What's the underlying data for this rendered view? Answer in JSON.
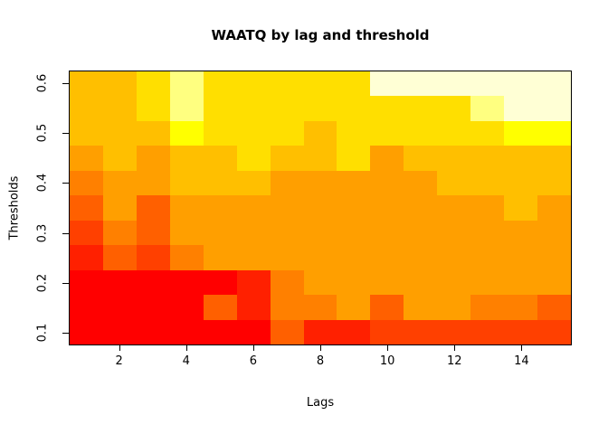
{
  "title": "WAATQ by lag and threshold",
  "chart_data": {
    "type": "heatmap",
    "title": "WAATQ by lag and threshold",
    "xlabel": "Lags",
    "ylabel": "Thresholds",
    "x_values": [
      1,
      2,
      3,
      4,
      5,
      6,
      7,
      8,
      9,
      10,
      11,
      12,
      13,
      14,
      15
    ],
    "y_values": [
      0.1,
      0.15,
      0.2,
      0.25,
      0.3,
      0.35,
      0.4,
      0.45,
      0.5,
      0.55,
      0.6
    ],
    "x_ticks": [
      2,
      4,
      6,
      8,
      10,
      12,
      14
    ],
    "y_ticks": [
      "0.1",
      "0.2",
      "0.3",
      "0.4",
      "0.5",
      "0.6"
    ],
    "x_range": [
      0.5,
      15.5
    ],
    "y_range": [
      0.075,
      0.625
    ],
    "grid_lines": "off",
    "legend": "none",
    "palette_name": "heat-colors-12",
    "palette": [
      "#FF0000",
      "#FF2000",
      "#FF4000",
      "#FF6000",
      "#FF8000",
      "#FF9F00",
      "#FFBF00",
      "#FFDF00",
      "#FFFF00",
      "#FFFF2A",
      "#FFFF80",
      "#FFFFD5"
    ],
    "value_encoding": "each cell stores a 1-based color-bucket index into palette (low index = red/low WAATQ, high index = pale yellow/high WAATQ), as read from the image",
    "rows": [
      {
        "threshold": 0.1,
        "levels": [
          1,
          1,
          1,
          1,
          1,
          1,
          4,
          2,
          2,
          3,
          3,
          3,
          3,
          3,
          3
        ]
      },
      {
        "threshold": 0.15,
        "levels": [
          1,
          1,
          1,
          1,
          4,
          2,
          5,
          5,
          6,
          4,
          6,
          6,
          5,
          5,
          4
        ]
      },
      {
        "threshold": 0.2,
        "levels": [
          1,
          1,
          1,
          1,
          1,
          2,
          5,
          6,
          6,
          6,
          6,
          6,
          6,
          6,
          6
        ]
      },
      {
        "threshold": 0.25,
        "levels": [
          2,
          4,
          3,
          5,
          6,
          6,
          6,
          6,
          6,
          6,
          6,
          6,
          6,
          6,
          6
        ]
      },
      {
        "threshold": 0.3,
        "levels": [
          3,
          5,
          4,
          6,
          6,
          6,
          6,
          6,
          6,
          6,
          6,
          6,
          6,
          6,
          6
        ]
      },
      {
        "threshold": 0.35,
        "levels": [
          4,
          6,
          4,
          6,
          6,
          6,
          6,
          6,
          6,
          6,
          6,
          6,
          6,
          7,
          6
        ]
      },
      {
        "threshold": 0.4,
        "levels": [
          5,
          6,
          6,
          7,
          7,
          7,
          6,
          6,
          6,
          6,
          6,
          7,
          7,
          7,
          7
        ]
      },
      {
        "threshold": 0.45,
        "levels": [
          6,
          7,
          6,
          7,
          7,
          8,
          7,
          7,
          8,
          6,
          7,
          7,
          7,
          7,
          7
        ]
      },
      {
        "threshold": 0.5,
        "levels": [
          7,
          7,
          7,
          9,
          8,
          8,
          8,
          7,
          8,
          8,
          8,
          8,
          8,
          9,
          9
        ]
      },
      {
        "threshold": 0.55,
        "levels": [
          7,
          7,
          8,
          11,
          8,
          8,
          8,
          8,
          8,
          8,
          8,
          8,
          11,
          12,
          12
        ]
      },
      {
        "threshold": 0.6,
        "levels": [
          7,
          7,
          8,
          11,
          8,
          8,
          8,
          8,
          8,
          12,
          12,
          12,
          12,
          12,
          12
        ]
      }
    ]
  }
}
